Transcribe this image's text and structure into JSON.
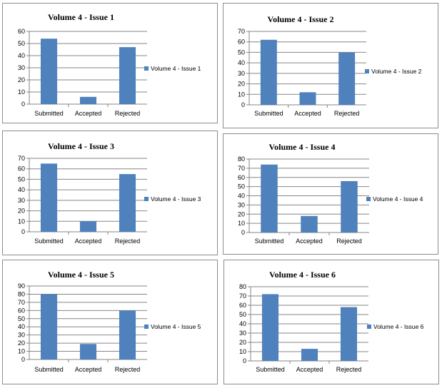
{
  "chart_data": [
    {
      "type": "bar",
      "title": "Volume 4 - Issue  1",
      "categories": [
        "Submitted",
        "Accepted",
        "Rejected"
      ],
      "series": [
        {
          "name": "Volume 4 - Issue 1",
          "values": [
            54,
            6,
            47
          ]
        }
      ],
      "ylim": [
        0,
        60
      ],
      "yticks": [
        0,
        10,
        20,
        30,
        40,
        50,
        60
      ],
      "grid": true,
      "legend": "right",
      "bar_color": "#4f81bd"
    },
    {
      "type": "bar",
      "title": "Volume 4 - Issue  2",
      "categories": [
        "Submitted",
        "Accepted",
        "Rejected"
      ],
      "series": [
        {
          "name": "Volume 4 - Issue 2",
          "values": [
            62,
            12,
            50
          ]
        }
      ],
      "ylim": [
        0,
        70
      ],
      "yticks": [
        0,
        10,
        20,
        30,
        40,
        50,
        60,
        70
      ],
      "grid": true,
      "legend": "right",
      "bar_color": "#4f81bd"
    },
    {
      "type": "bar",
      "title": "Volume 4 - Issue  3",
      "categories": [
        "Submitted",
        "Accepted",
        "Rejected"
      ],
      "series": [
        {
          "name": "Volume 4 - Issue 3",
          "values": [
            65,
            10,
            55
          ]
        }
      ],
      "ylim": [
        0,
        70
      ],
      "yticks": [
        0,
        10,
        20,
        30,
        40,
        50,
        60,
        70
      ],
      "grid": true,
      "legend": "right",
      "bar_color": "#4f81bd"
    },
    {
      "type": "bar",
      "title": "Volume 4 - Issue  4",
      "categories": [
        "Submitted",
        "Accepted",
        "Rejected"
      ],
      "series": [
        {
          "name": "Volume 4 - Issue 4",
          "values": [
            74,
            18,
            56
          ]
        }
      ],
      "ylim": [
        0,
        80
      ],
      "yticks": [
        0,
        10,
        20,
        30,
        40,
        50,
        60,
        70,
        80
      ],
      "grid": true,
      "legend": "right",
      "bar_color": "#4f81bd"
    },
    {
      "type": "bar",
      "title": "Volume 4 - Issue  5",
      "categories": [
        "Submitted",
        "Accepted",
        "Rejected"
      ],
      "series": [
        {
          "name": "Volume 4 - Issue 5",
          "values": [
            80,
            19,
            60
          ]
        }
      ],
      "ylim": [
        0,
        90
      ],
      "yticks": [
        0,
        10,
        20,
        30,
        40,
        50,
        60,
        70,
        80,
        90
      ],
      "grid": true,
      "legend": "right",
      "bar_color": "#4f81bd"
    },
    {
      "type": "bar",
      "title": "Volume 4 - Issue  6",
      "categories": [
        "Submitted",
        "Accepted",
        "Rejected"
      ],
      "series": [
        {
          "name": "Volume 4 - Issue 6",
          "values": [
            72,
            13,
            58
          ]
        }
      ],
      "ylim": [
        0,
        80
      ],
      "yticks": [
        0,
        10,
        20,
        30,
        40,
        50,
        60,
        70,
        80
      ],
      "grid": true,
      "legend": "right",
      "bar_color": "#4f81bd"
    }
  ]
}
